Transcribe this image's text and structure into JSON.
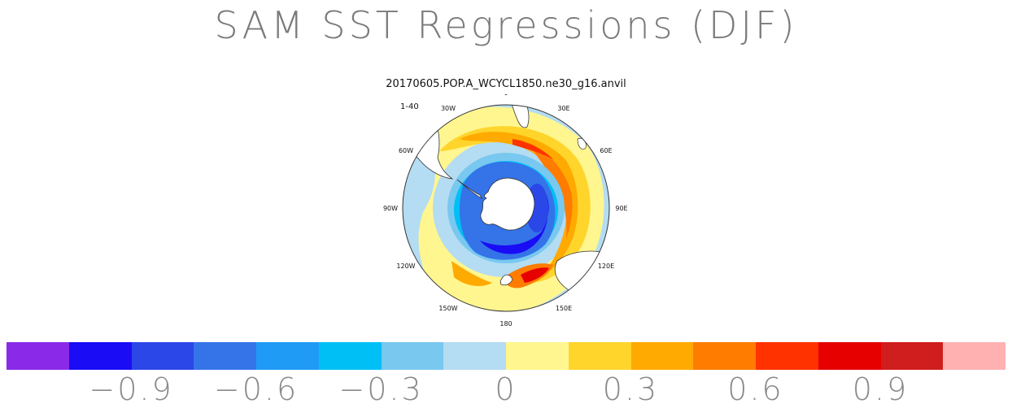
{
  "title": "SAM SST Regressions (DJF)",
  "subtitle": "20170605.POP.A_WCYCL1850.ne30_g16.anvil",
  "panel_label": "1-40",
  "map": {
    "projection": "south-polar-stereographic",
    "lon_labels": [
      "0",
      "30E",
      "60E",
      "90E",
      "120E",
      "150E",
      "180",
      "150W",
      "120W",
      "90W",
      "60W",
      "30W"
    ]
  },
  "colorbar": {
    "colors": [
      "#8a2ae8",
      "#1a0cf5",
      "#2b47e8",
      "#3473e8",
      "#1f9bf5",
      "#00bff5",
      "#78c8f0",
      "#b4dcf2",
      "#fff68f",
      "#ffd52c",
      "#ffaa00",
      "#ff7c00",
      "#ff3200",
      "#e60000",
      "#d01d1d",
      "#ffb1b1"
    ],
    "tick_labels": [
      "−0.9",
      "−0.6",
      "−0.3",
      "0",
      "0.3",
      "0.6",
      "0.9"
    ]
  },
  "colors": {
    "land": "#ffffff",
    "coast": "#333333",
    "background": "#ffffff"
  }
}
